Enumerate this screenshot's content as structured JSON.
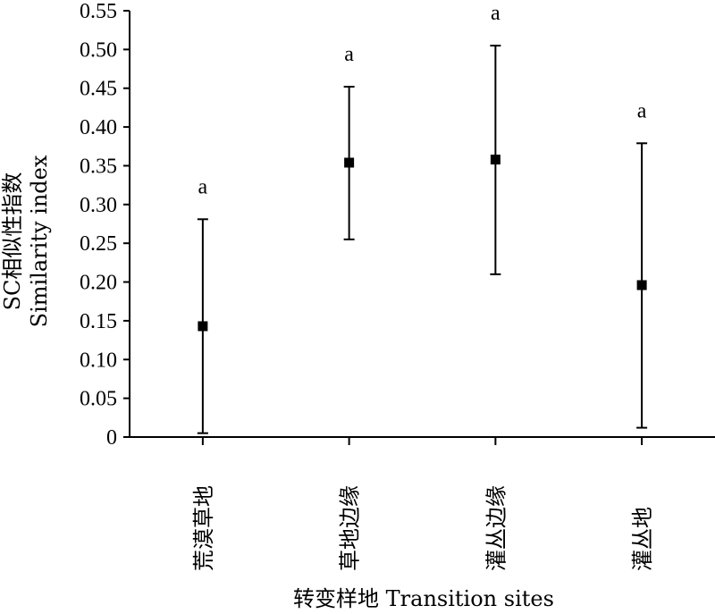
{
  "chart_data": {
    "type": "scatter",
    "categories": [
      "荒漠草地",
      "草地边缘",
      "灌丛边缘",
      "灌丛地"
    ],
    "values": [
      0.143,
      0.354,
      0.358,
      0.196
    ],
    "error_low": [
      0.005,
      0.255,
      0.21,
      0.012
    ],
    "error_high": [
      0.281,
      0.452,
      0.505,
      0.379
    ],
    "significance_labels": [
      "a",
      "a",
      "a",
      "a"
    ],
    "title": "",
    "xlabel": "转变样地 Transition sites",
    "ylabel_lines": [
      "SC相似性指数",
      "Similarity index"
    ],
    "ylim": [
      0,
      0.55
    ],
    "yticks": [
      0,
      0.05,
      0.1,
      0.15,
      0.2,
      0.25,
      0.3,
      0.35,
      0.4,
      0.45,
      0.5,
      0.55
    ],
    "ytick_labels": [
      "0",
      "0.05",
      "0.10",
      "0.15",
      "0.20",
      "0.25",
      "0.30",
      "0.35",
      "0.40",
      "0.45",
      "0.50",
      "0.55"
    ],
    "grid": false,
    "marker": "filled-square",
    "marker_color": "#000000"
  }
}
